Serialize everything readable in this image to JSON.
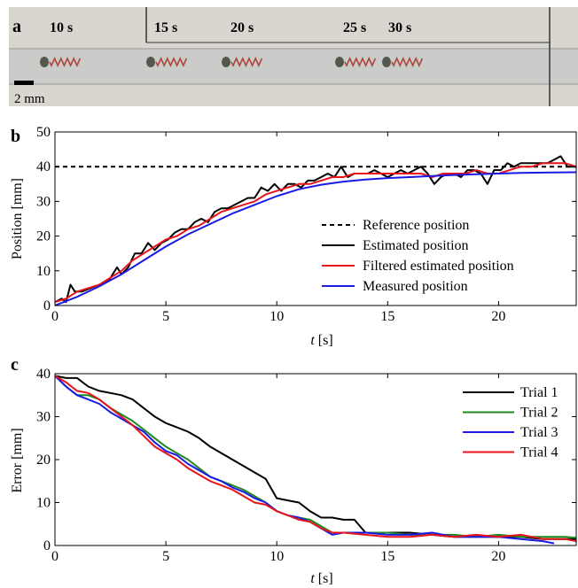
{
  "panel_a": {
    "letter": "a",
    "time_labels": [
      "10 s",
      "15 s",
      "20 s",
      "25 s",
      "30 s"
    ],
    "scale_bar_label": "2 mm",
    "colors": {
      "background": "#d8d6cf",
      "spring": "#b0473f",
      "tube": "#c9ccc8"
    }
  },
  "chart_data": [
    {
      "panel": "b",
      "type": "line",
      "ylabel": "Position [mm]",
      "xlabel_italic": "t",
      "xlabel_unit": " [s]",
      "xlim": [
        0,
        23.5
      ],
      "ylim": [
        0,
        50
      ],
      "xticks": [
        0,
        5,
        10,
        15,
        20
      ],
      "yticks": [
        0,
        10,
        20,
        30,
        40,
        50
      ],
      "legend": "center-right",
      "series": [
        {
          "name": "Reference position",
          "color": "#000000",
          "dash": "5,4",
          "x": [
            0,
            23.5
          ],
          "y": [
            40,
            40
          ]
        },
        {
          "name": "Estimated position",
          "color": "#000000",
          "x": [
            0,
            0.3,
            0.5,
            0.7,
            0.9,
            1.2,
            1.6,
            2.0,
            2.4,
            2.8,
            3.0,
            3.3,
            3.6,
            3.9,
            4.2,
            4.5,
            4.8,
            5.1,
            5.4,
            5.7,
            6.0,
            6.3,
            6.6,
            6.9,
            7.2,
            7.5,
            7.8,
            8.1,
            8.4,
            8.7,
            9.0,
            9.3,
            9.6,
            9.9,
            10.2,
            10.5,
            10.8,
            11.1,
            11.4,
            11.7,
            12.0,
            12.3,
            12.6,
            12.9,
            13.2,
            13.5,
            13.8,
            14.1,
            14.4,
            14.7,
            15.0,
            15.3,
            15.6,
            15.9,
            16.2,
            16.5,
            16.8,
            17.1,
            17.4,
            17.7,
            18.0,
            18.3,
            18.6,
            18.9,
            19.2,
            19.5,
            19.8,
            20.1,
            20.4,
            20.7,
            21.0,
            21.3,
            21.6,
            21.9,
            22.2,
            22.5,
            22.8,
            23.1,
            23.5
          ],
          "y": [
            1,
            2,
            1,
            6,
            4,
            4,
            5,
            6,
            7,
            11,
            9,
            11,
            15,
            15,
            18,
            16,
            18,
            19,
            21,
            22,
            22,
            24,
            25,
            24,
            27,
            28,
            28,
            29,
            30,
            31,
            31,
            34,
            33,
            35,
            33,
            35,
            35,
            34,
            36,
            36,
            37,
            38,
            37,
            40,
            37,
            38,
            38,
            38,
            39,
            38,
            37,
            38,
            39,
            38,
            39,
            40,
            38,
            35,
            37,
            38,
            38,
            37,
            39,
            39,
            38,
            35,
            39,
            39,
            41,
            40,
            41,
            41,
            41,
            41,
            41,
            42,
            43,
            40,
            40
          ]
        },
        {
          "name": "Filtered estimated position",
          "color": "#e8141a",
          "x": [
            0,
            0.5,
            1.0,
            1.5,
            2.0,
            2.5,
            3.0,
            3.5,
            4.0,
            4.5,
            5.0,
            5.5,
            6.0,
            6.5,
            7.0,
            7.5,
            8.0,
            8.5,
            9.0,
            9.5,
            10.0,
            10.5,
            11.0,
            11.5,
            12.0,
            12.5,
            13.0,
            13.5,
            14.0,
            14.5,
            15.0,
            15.5,
            16.0,
            16.5,
            17.0,
            17.5,
            18.0,
            18.5,
            19.0,
            19.5,
            20.0,
            20.5,
            21.0,
            21.5,
            22.0,
            22.5,
            23.0,
            23.5
          ],
          "y": [
            1,
            2,
            4,
            5,
            6,
            8,
            10,
            13,
            15,
            17,
            19,
            20,
            22,
            23,
            25,
            27,
            28,
            29,
            30,
            32,
            33,
            34,
            35,
            35,
            36,
            37,
            37,
            38,
            38,
            38,
            38,
            38,
            38,
            38,
            37,
            38,
            38,
            38,
            39,
            38,
            38,
            39,
            40,
            40,
            41,
            41,
            41,
            40
          ]
        },
        {
          "name": "Measured position",
          "color": "#1a1ae6",
          "x": [
            0,
            1,
            2,
            3,
            4,
            5,
            6,
            7,
            8,
            9,
            10,
            11,
            12,
            13,
            14,
            15,
            16,
            17,
            18,
            19,
            20,
            21,
            22,
            23.5
          ],
          "y": [
            0,
            2.5,
            5.5,
            9,
            13,
            17,
            20.5,
            23.5,
            26.5,
            29,
            31.5,
            33.5,
            34.8,
            35.7,
            36.3,
            36.7,
            37,
            37.3,
            37.6,
            37.8,
            38,
            38.2,
            38.3,
            38.4
          ]
        }
      ]
    },
    {
      "panel": "c",
      "type": "line",
      "ylabel": "Error [mm]",
      "xlabel_italic": "t",
      "xlabel_unit": " [s]",
      "xlim": [
        0,
        23.5
      ],
      "ylim": [
        0,
        40
      ],
      "xticks": [
        0,
        5,
        10,
        15,
        20
      ],
      "yticks": [
        0,
        10,
        20,
        30,
        40
      ],
      "legend": "top-right",
      "series": [
        {
          "name": "Trial 1",
          "color": "#000000",
          "x": [
            0,
            0.5,
            1.0,
            1.5,
            2.0,
            2.5,
            3.0,
            3.5,
            4.0,
            4.5,
            5.0,
            5.5,
            6.0,
            6.5,
            7.0,
            7.5,
            8.0,
            8.5,
            9.0,
            9.5,
            10.0,
            10.5,
            11.0,
            11.5,
            12.0,
            12.5,
            13.0,
            13.5,
            14.0,
            14.5,
            15.0,
            16.0,
            17.0,
            18.0,
            19.0,
            20.0,
            21.0,
            22.0,
            23.0,
            23.5
          ],
          "y": [
            39.5,
            39,
            39,
            37,
            36,
            35.5,
            35,
            34,
            32,
            30,
            28.5,
            27.5,
            26.5,
            25,
            23,
            21.5,
            20,
            18.5,
            17,
            15.5,
            11,
            10.5,
            10,
            8,
            6.5,
            6.5,
            6,
            6,
            3,
            3,
            3,
            3,
            2.5,
            2,
            2,
            2,
            2,
            1.5,
            1.5,
            1.5
          ]
        },
        {
          "name": "Trial 2",
          "color": "#1e8a1e",
          "x": [
            0,
            0.5,
            1.0,
            1.5,
            2.0,
            2.5,
            3.0,
            3.5,
            4.0,
            4.5,
            5.0,
            5.5,
            6.0,
            6.5,
            7.0,
            7.5,
            8.0,
            8.5,
            9.0,
            9.5,
            10.0,
            10.5,
            11.0,
            11.5,
            12.0,
            12.5,
            13.0,
            14.0,
            15.0,
            16.0,
            17.0,
            18.0,
            19.0,
            20.0,
            21.0,
            22.0,
            23.0,
            23.5
          ],
          "y": [
            39.5,
            37,
            35,
            35,
            34,
            32,
            30.5,
            29,
            27,
            25,
            23,
            21.5,
            20,
            18,
            16,
            15,
            14,
            13,
            11.5,
            10,
            8,
            7,
            6.5,
            6,
            4.5,
            3,
            3,
            3,
            3,
            2.5,
            2.5,
            2.5,
            2,
            2.5,
            2,
            2,
            2,
            1.8
          ]
        },
        {
          "name": "Trial 3",
          "color": "#1a1ae6",
          "x": [
            0,
            0.5,
            1.0,
            1.5,
            2.0,
            2.5,
            3.0,
            3.5,
            4.0,
            4.5,
            5.0,
            5.5,
            6.0,
            6.5,
            7.0,
            7.5,
            8.0,
            8.5,
            9.0,
            9.5,
            10.0,
            10.5,
            11.0,
            11.5,
            12.0,
            12.5,
            13.0,
            14.0,
            15.0,
            16.0,
            17.0,
            18.0,
            19.0,
            20.0,
            21.0,
            22.0,
            22.5
          ],
          "y": [
            39.5,
            37,
            35,
            34,
            33,
            31,
            29.5,
            28,
            26.5,
            24,
            22,
            21,
            19,
            17.5,
            16,
            15,
            13.5,
            12.5,
            11,
            10,
            8,
            7,
            6.5,
            5.5,
            4,
            2.5,
            3,
            3,
            2.5,
            2.5,
            3,
            2,
            2,
            2,
            1.5,
            1,
            0.5
          ]
        },
        {
          "name": "Trial 4",
          "color": "#e8141a",
          "x": [
            0,
            0.5,
            1.0,
            1.5,
            2.0,
            2.5,
            3.0,
            3.5,
            4.0,
            4.5,
            5.0,
            5.5,
            6.0,
            6.5,
            7.0,
            7.5,
            8.0,
            8.5,
            9.0,
            9.5,
            10.0,
            10.5,
            11.0,
            11.5,
            12.0,
            12.5,
            13.0,
            14.0,
            15.0,
            16.0,
            17.0,
            18.0,
            19.0,
            20.0,
            21.0,
            22.0,
            23.0,
            23.5
          ],
          "y": [
            39.5,
            38,
            36,
            35.5,
            34,
            32,
            30,
            28,
            25.5,
            23,
            21.5,
            20,
            18,
            16.5,
            15,
            14,
            13,
            11.5,
            10,
            9.5,
            8,
            7,
            6,
            5.5,
            4,
            3,
            3,
            2.5,
            2,
            2,
            2.5,
            2,
            2.5,
            2,
            2.5,
            1.5,
            1.5,
            1
          ]
        }
      ]
    }
  ]
}
